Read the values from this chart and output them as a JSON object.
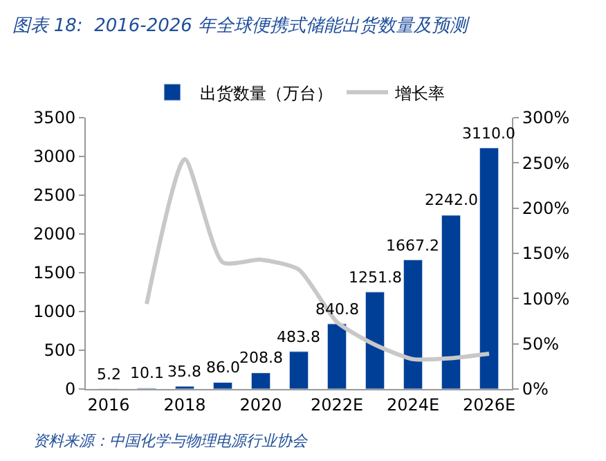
{
  "chart_data": {
    "type": "bar",
    "title": "图表 18:  2016-2026 年全球便携式储能出货数量及预测",
    "categories": [
      "2016",
      null,
      "2018",
      null,
      "2020",
      null,
      "2022E",
      null,
      "2024E",
      null,
      "2026E"
    ],
    "series": [
      {
        "name": "出货数量（万台）",
        "color": "#003f98",
        "values": [
          5.2,
          10.1,
          35.8,
          86.0,
          208.8,
          483.8,
          840.8,
          1251.8,
          1667.2,
          2242.0,
          3110.0
        ],
        "value_labels": [
          "5.2",
          "10.1",
          "35.8",
          "86.0",
          "208.8",
          "483.8",
          "840.8",
          "1251.8",
          "1667.2",
          "2242.0",
          "3110.0"
        ]
      },
      {
        "name": "增长率",
        "type": "line",
        "axis": "y2",
        "color": "#c8c8c8",
        "values": [
          null,
          94,
          254,
          140,
          143,
          132,
          74,
          49,
          33,
          34,
          39
        ]
      }
    ],
    "ylim": [
      0,
      3500
    ],
    "yticks": [
      0,
      500,
      1000,
      1500,
      2000,
      2500,
      3000,
      3500
    ],
    "y2lim": [
      0,
      300
    ],
    "y2ticks": [
      {
        "value": 0,
        "label": "0%"
      },
      {
        "value": 50,
        "label": "50%"
      },
      {
        "value": 100,
        "label": "100%"
      },
      {
        "value": 150,
        "label": "150%"
      },
      {
        "value": 200,
        "label": "200%"
      },
      {
        "value": 250,
        "label": "250%"
      },
      {
        "value": 300,
        "label": "300%"
      }
    ],
    "legend": "top",
    "marker": "none",
    "line_style": "solid",
    "annotations": [
      "资料来源：中国化学与物理电源行业协会"
    ]
  }
}
